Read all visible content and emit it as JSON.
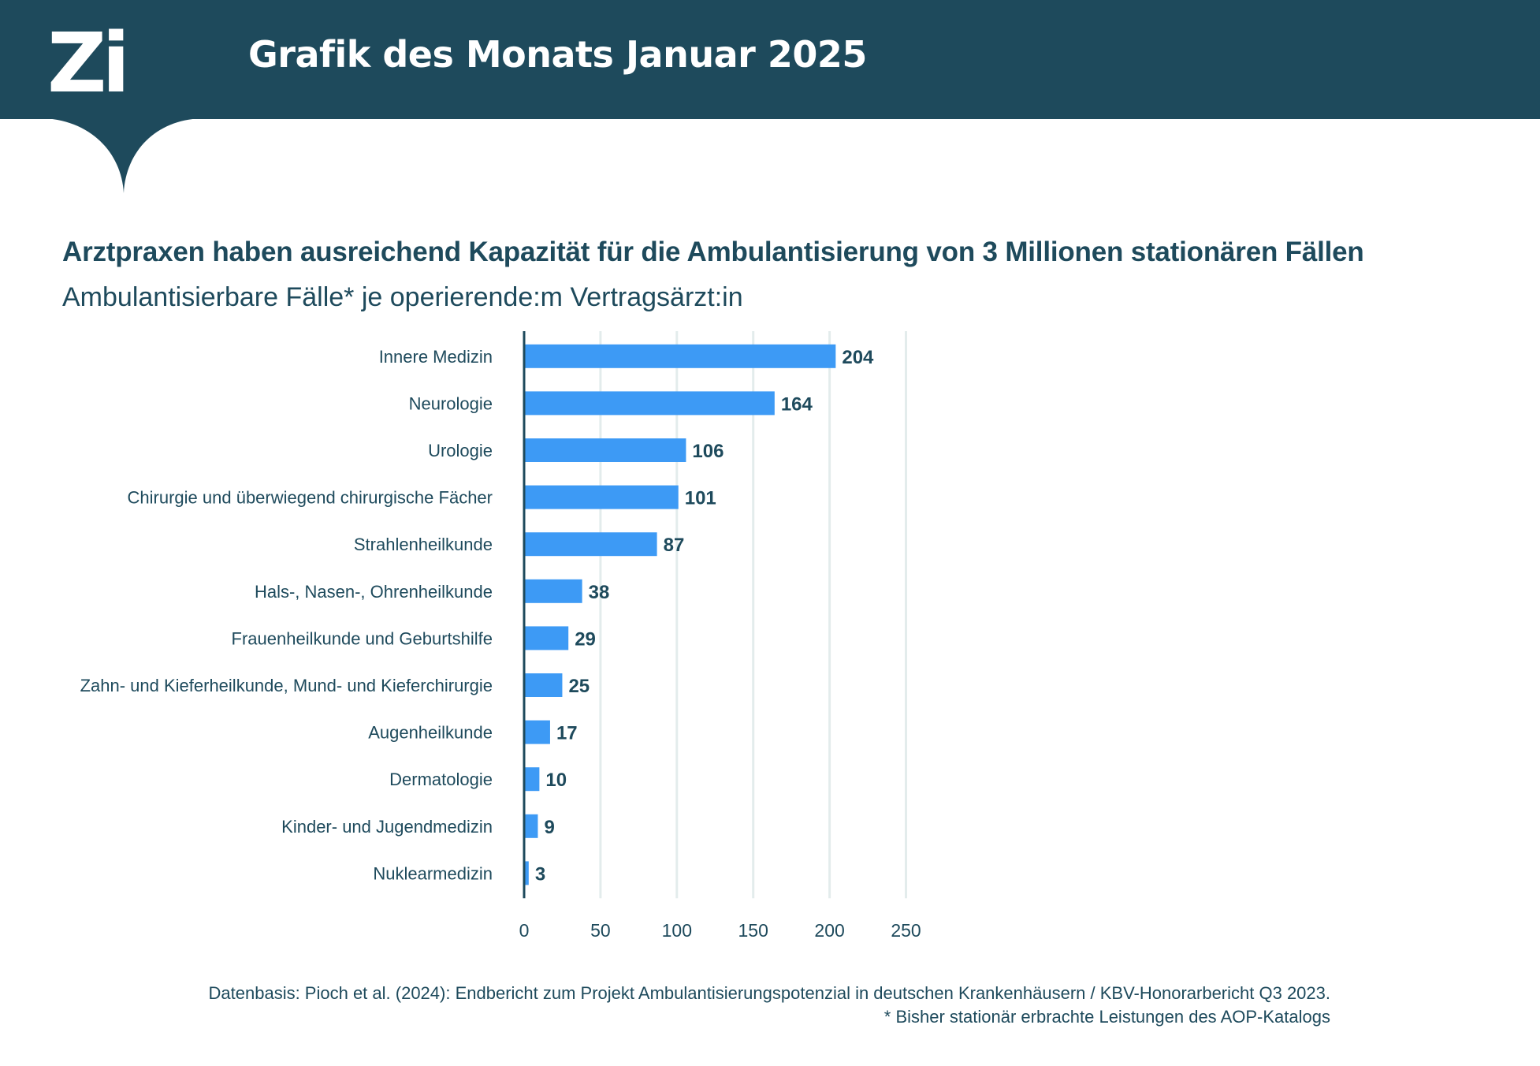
{
  "header": {
    "logo_text": "Zi",
    "title": "Grafik des Monats Januar 2025"
  },
  "colors": {
    "header_bg": "#1e4a5c",
    "bar": "#3d9af5",
    "text": "#1e4a5c",
    "grid": "#e3ecec"
  },
  "chart_data": {
    "type": "bar",
    "orientation": "horizontal",
    "title": "Arztpraxen haben ausreichend Kapazität für die Ambulantisierung von 3 Millionen stationären Fällen",
    "subtitle": "Ambulantisierbare Fälle* je operierende:m Vertragsärzt:in",
    "categories": [
      "Innere Medizin",
      "Neurologie",
      "Urologie",
      "Chirurgie und überwiegend chirurgische Fächer",
      "Strahlenheilkunde",
      "Hals-, Nasen-, Ohrenheilkunde",
      "Frauenheilkunde und Geburtshilfe",
      "Zahn- und Kieferheilkunde, Mund- und Kieferchirurgie",
      "Augenheilkunde",
      "Dermatologie",
      "Kinder- und Jugendmedizin",
      "Nuklearmedizin"
    ],
    "values": [
      204,
      164,
      106,
      101,
      87,
      38,
      29,
      25,
      17,
      10,
      9,
      3
    ],
    "xlim": [
      0,
      250
    ],
    "xticks": [
      "0",
      "50",
      "100",
      "150",
      "200",
      "250"
    ],
    "grid": "vertical",
    "legend": "none"
  },
  "footnote": {
    "source": "Datenbasis: Pioch et al. (2024): Endbericht zum Projekt Ambulantisierungspotenzial in deutschen Krankenhäusern / KBV-Honorarbericht Q3 2023.",
    "note": "* Bisher stationär erbrachte Leistungen des AOP-Katalogs"
  }
}
